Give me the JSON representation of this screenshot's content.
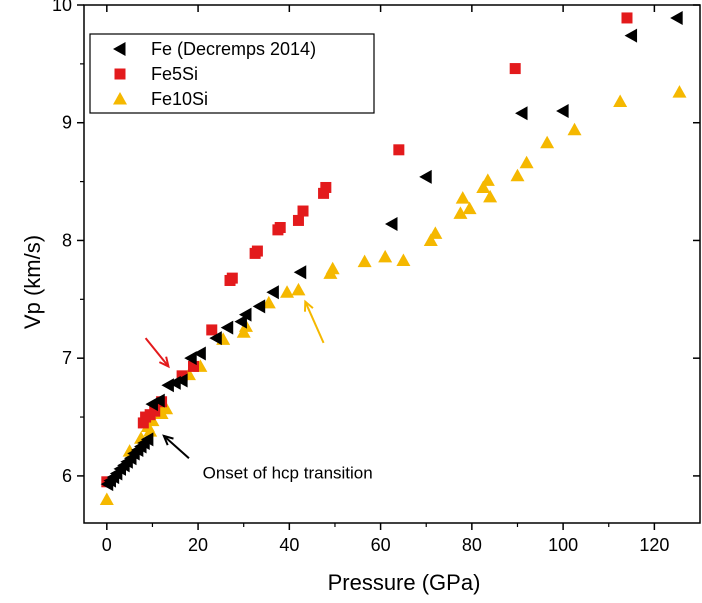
{
  "chart_data": {
    "type": "scatter",
    "xlabel": "Pressure (GPa)",
    "ylabel": "Vp (km/s)",
    "xlim": [
      -5,
      130
    ],
    "ylim": [
      5.6,
      10.0
    ],
    "xticks": [
      0,
      20,
      40,
      60,
      80,
      100,
      120
    ],
    "yticks": [
      6,
      7,
      8,
      9,
      10
    ],
    "grid": false,
    "legend_position": "top-left",
    "series": [
      {
        "name": "Fe (Decremps 2014)",
        "marker": "triangle-left",
        "color": "#000000",
        "points": [
          [
            0.2,
            5.93
          ],
          [
            0.8,
            5.96
          ],
          [
            1.5,
            5.99
          ],
          [
            2.2,
            6.02
          ],
          [
            3.0,
            6.06
          ],
          [
            3.8,
            6.09
          ],
          [
            4.5,
            6.12
          ],
          [
            5.3,
            6.15
          ],
          [
            6.0,
            6.19
          ],
          [
            6.8,
            6.22
          ],
          [
            7.5,
            6.25
          ],
          [
            8.2,
            6.28
          ],
          [
            9.0,
            6.31
          ],
          [
            10.0,
            6.61
          ],
          [
            11.5,
            6.64
          ],
          [
            13.5,
            6.77
          ],
          [
            15.0,
            6.79
          ],
          [
            16.5,
            6.81
          ],
          [
            18.5,
            7.0
          ],
          [
            20.5,
            7.04
          ],
          [
            24.0,
            7.17
          ],
          [
            26.5,
            7.26
          ],
          [
            29.5,
            7.31
          ],
          [
            30.5,
            7.37
          ],
          [
            33.5,
            7.44
          ],
          [
            36.5,
            7.56
          ],
          [
            42.5,
            7.73
          ],
          [
            62.5,
            8.14
          ],
          [
            70.0,
            8.54
          ],
          [
            91.0,
            9.08
          ],
          [
            100.0,
            9.1
          ],
          [
            115.0,
            9.74
          ],
          [
            125.0,
            9.89
          ]
        ]
      },
      {
        "name": "Fe5Si",
        "marker": "square",
        "color": "#e31a1c",
        "points": [
          [
            0.0,
            5.95
          ],
          [
            8.0,
            6.45
          ],
          [
            8.5,
            6.5
          ],
          [
            9.5,
            6.52
          ],
          [
            10.5,
            6.55
          ],
          [
            12.0,
            6.63
          ],
          [
            16.5,
            6.85
          ],
          [
            19.0,
            6.93
          ],
          [
            23.0,
            7.24
          ],
          [
            27.0,
            7.66
          ],
          [
            27.5,
            7.68
          ],
          [
            32.5,
            7.89
          ],
          [
            33.0,
            7.91
          ],
          [
            37.5,
            8.09
          ],
          [
            38.0,
            8.11
          ],
          [
            42.0,
            8.17
          ],
          [
            43.0,
            8.25
          ],
          [
            47.5,
            8.4
          ],
          [
            48.0,
            8.45
          ],
          [
            64.0,
            8.77
          ],
          [
            89.5,
            9.46
          ],
          [
            114.0,
            9.89
          ]
        ]
      },
      {
        "name": "Fe10Si",
        "marker": "triangle-up",
        "color": "#f5b800",
        "points": [
          [
            0.0,
            5.8
          ],
          [
            5.0,
            6.21
          ],
          [
            7.5,
            6.32
          ],
          [
            9.0,
            6.42
          ],
          [
            9.5,
            6.38
          ],
          [
            10.0,
            6.47
          ],
          [
            12.0,
            6.53
          ],
          [
            12.5,
            6.6
          ],
          [
            13.0,
            6.57
          ],
          [
            18.0,
            6.86
          ],
          [
            20.5,
            6.93
          ],
          [
            25.5,
            7.16
          ],
          [
            30.0,
            7.22
          ],
          [
            30.5,
            7.27
          ],
          [
            35.5,
            7.47
          ],
          [
            39.5,
            7.56
          ],
          [
            42.0,
            7.58
          ],
          [
            49.0,
            7.72
          ],
          [
            49.5,
            7.76
          ],
          [
            56.5,
            7.82
          ],
          [
            61.0,
            7.86
          ],
          [
            65.0,
            7.83
          ],
          [
            71.0,
            8.0
          ],
          [
            72.0,
            8.06
          ],
          [
            77.5,
            8.23
          ],
          [
            78.0,
            8.36
          ],
          [
            79.5,
            8.27
          ],
          [
            82.5,
            8.45
          ],
          [
            83.5,
            8.51
          ],
          [
            84.0,
            8.37
          ],
          [
            90.0,
            8.55
          ],
          [
            92.0,
            8.66
          ],
          [
            96.5,
            8.83
          ],
          [
            102.5,
            8.94
          ],
          [
            112.5,
            9.18
          ],
          [
            125.5,
            9.26
          ]
        ]
      }
    ],
    "annotations": [
      {
        "text": "Onset of hcp transition",
        "x": 21,
        "y": 5.98
      },
      {
        "arrow_color": "#000000",
        "from": [
          18,
          6.15
        ],
        "to": [
          12.5,
          6.34
        ]
      },
      {
        "arrow_color": "#e31a1c",
        "from": [
          8.5,
          7.17
        ],
        "to": [
          13.5,
          6.93
        ]
      },
      {
        "arrow_color": "#f5b800",
        "from": [
          47.5,
          7.13
        ],
        "to": [
          43.5,
          7.48
        ]
      }
    ]
  }
}
